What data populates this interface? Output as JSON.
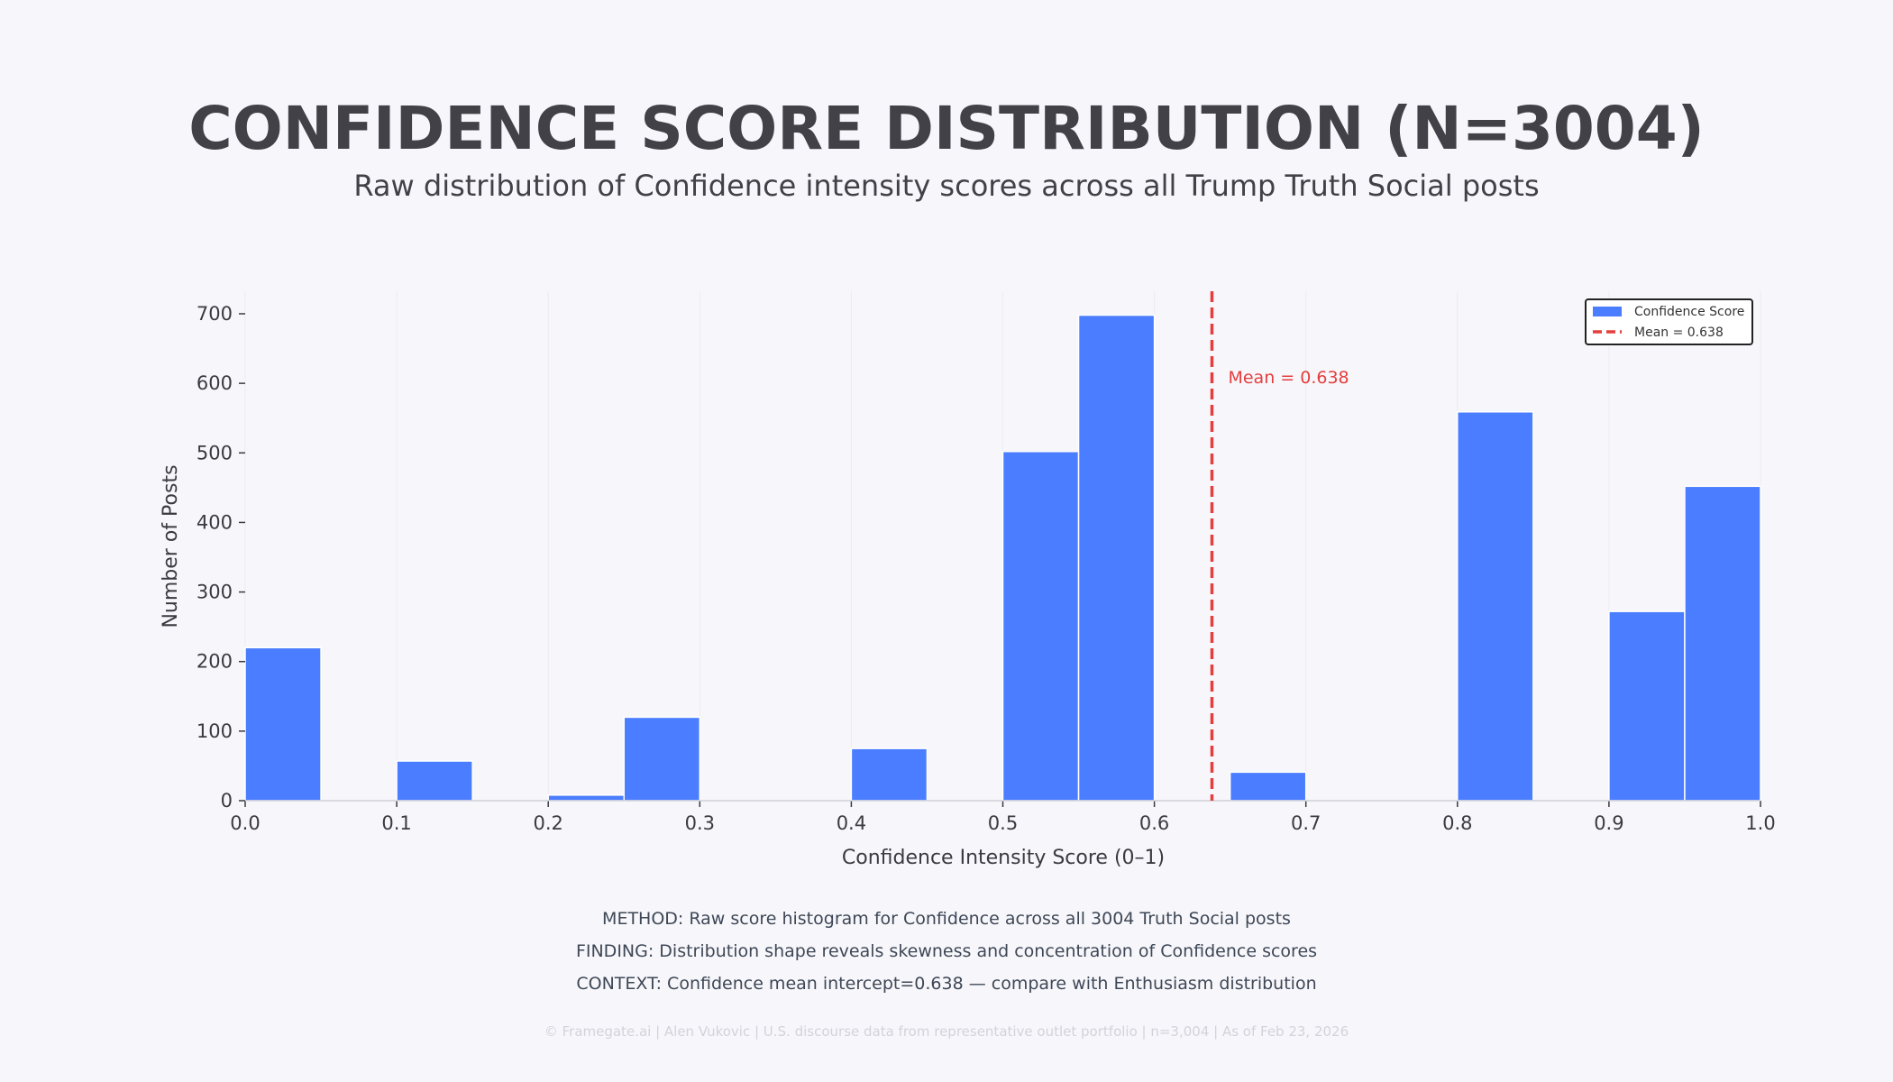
{
  "chart_data": {
    "type": "bar",
    "title": "CONFIDENCE SCORE DISTRIBUTION (N=3004)",
    "subtitle": "Raw distribution of Confidence intensity scores across all Trump Truth Social posts",
    "xlabel": "Confidence Intensity Score (0–1)",
    "ylabel": "Number of Posts",
    "xlim": [
      0,
      1
    ],
    "ylim": [
      0,
      735
    ],
    "x_ticks": [
      "0.0",
      "0.1",
      "0.2",
      "0.3",
      "0.4",
      "0.5",
      "0.6",
      "0.7",
      "0.8",
      "0.9",
      "1.0"
    ],
    "y_ticks": [
      "0",
      "100",
      "200",
      "300",
      "400",
      "500",
      "600",
      "700"
    ],
    "grid": "vertical",
    "bin_width": 0.05,
    "bins": [
      {
        "start": 0.0,
        "value": 220
      },
      {
        "start": 0.1,
        "value": 57
      },
      {
        "start": 0.2,
        "value": 8
      },
      {
        "start": 0.25,
        "value": 120
      },
      {
        "start": 0.4,
        "value": 75
      },
      {
        "start": 0.5,
        "value": 502
      },
      {
        "start": 0.55,
        "value": 698
      },
      {
        "start": 0.65,
        "value": 41
      },
      {
        "start": 0.8,
        "value": 559
      },
      {
        "start": 0.9,
        "value": 272
      },
      {
        "start": 0.95,
        "value": 452
      }
    ],
    "mean": 0.638,
    "mean_label": "Mean = 0.638",
    "legend": {
      "position": "top-right",
      "items": [
        "Confidence Score",
        "Mean = 0.638"
      ]
    },
    "colors": {
      "bar": "#4a7dff",
      "mean": "#e53e3e",
      "background": "#f7f7fb"
    }
  },
  "notes": [
    "METHOD: Raw score histogram for Confidence across all 3004 Truth Social posts",
    "FINDING: Distribution shape reveals skewness and concentration of Confidence scores",
    "CONTEXT: Confidence mean intercept=0.638 — compare with Enthusiasm distribution"
  ],
  "footer": "© Framegate.ai | Alen Vukovic | U.S. discourse data from representative outlet portfolio | n=3,004 | As of Feb 23, 2026"
}
